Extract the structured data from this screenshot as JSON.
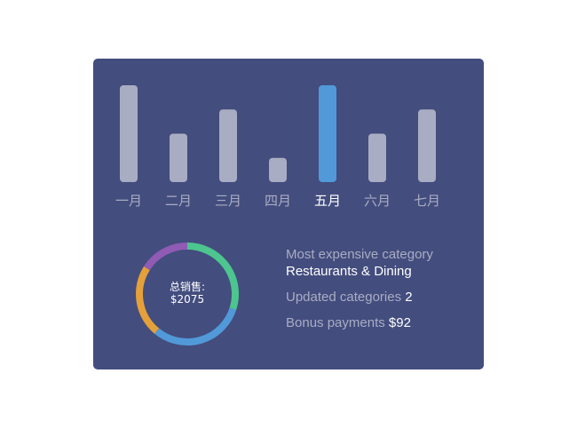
{
  "chart_data": [
    {
      "type": "bar",
      "categories": [
        "一月",
        "二月",
        "三月",
        "四月",
        "五月",
        "六月",
        "七月"
      ],
      "values": [
        4,
        2,
        3,
        1,
        4,
        2,
        3
      ],
      "highlighted": "五月",
      "colors": {
        "bar": "#a9adc3",
        "highlight": "#5199d8",
        "label": "#a9adc3",
        "highlight_label": "#ffffff"
      },
      "grid": false
    },
    {
      "type": "pie",
      "donut": true,
      "center_label": "总销售:",
      "center_value": "$2075",
      "slices": [
        {
          "value": 30,
          "color": "#4dc58e"
        },
        {
          "value": 31,
          "color": "#5199d8"
        },
        {
          "value": 23,
          "color": "#e5a03a"
        },
        {
          "value": 16,
          "color": "#8f5bb4"
        }
      ]
    }
  ],
  "info": {
    "most_expensive_label": "Most expensive category",
    "most_expensive_value": "Restaurants & Dining",
    "updated_label": "Updated categories",
    "updated_value": "2",
    "bonus_label": "Bonus payments",
    "bonus_value": "$92"
  }
}
